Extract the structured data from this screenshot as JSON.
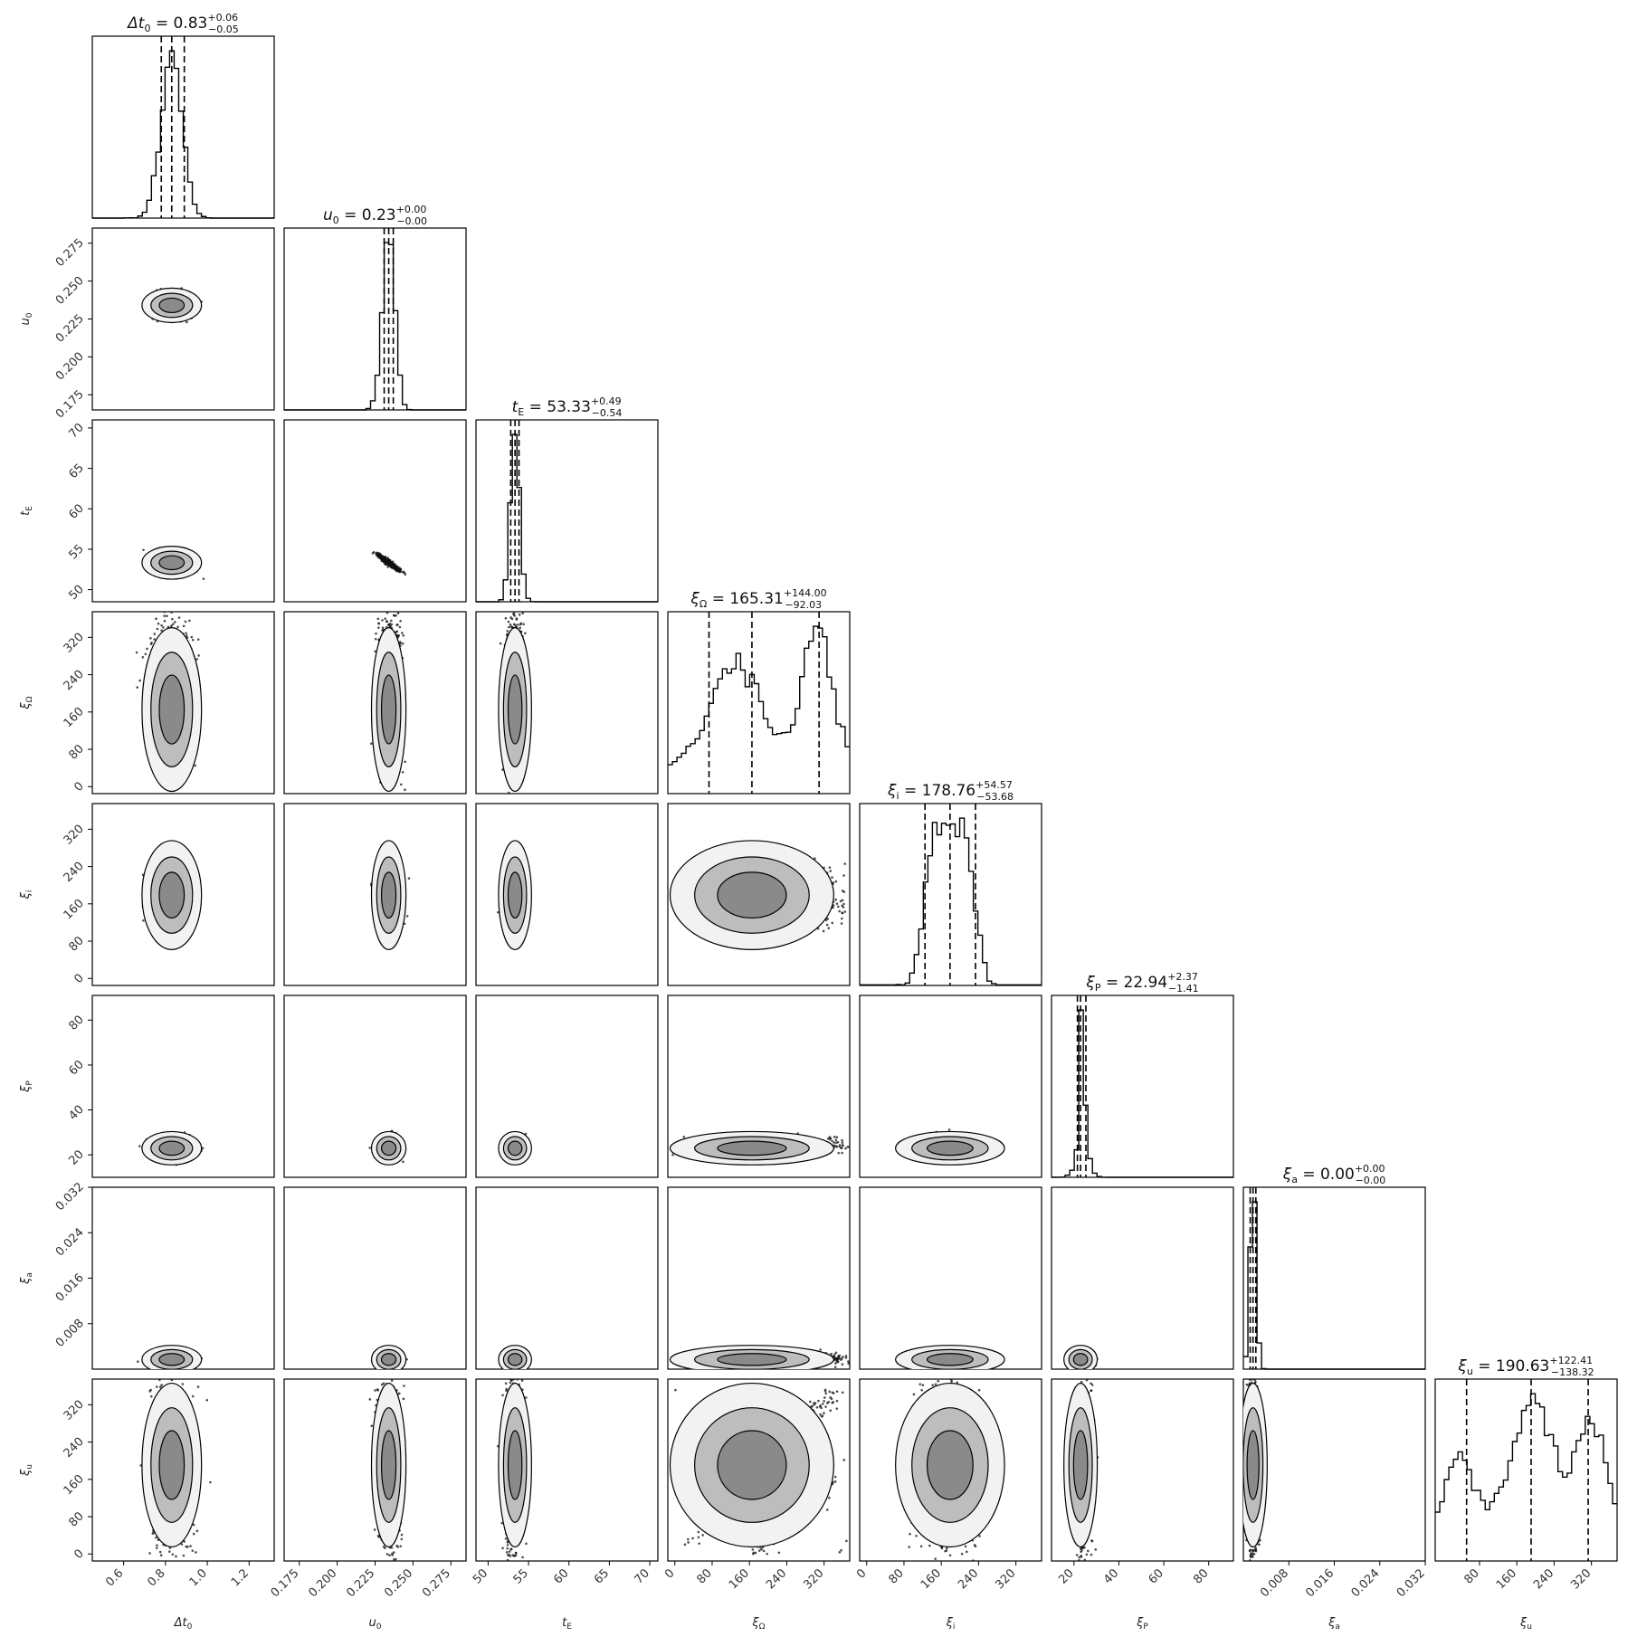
{
  "chart_data": {
    "type": "corner",
    "parameters": [
      {
        "key": "dt0",
        "label": "Δt0",
        "label_base": "Δt",
        "label_sub": "0",
        "title": "Δt0 = 0.83 +0.06 −0.05",
        "title_base": "Δt",
        "title_sub": "0",
        "median_text": " = 0.83",
        "plus": "+0.06",
        "minus": "−0.05",
        "range": [
          0.45,
          1.32
        ],
        "ticks": [
          0.6,
          0.8,
          1.0,
          1.2
        ],
        "tick_labels": [
          "0.6",
          "0.8",
          "1.0",
          "1.2"
        ],
        "median": 0.83,
        "q16": 0.78,
        "q84": 0.89,
        "hist_shape": "unimodal",
        "center": 0.83,
        "width": 0.05
      },
      {
        "key": "u0",
        "label": "u0",
        "label_base": "u",
        "label_sub": "0",
        "title": "u0 = 0.23 +0.00 −0.00",
        "title_base": "u",
        "title_sub": "0",
        "median_text": " = 0.23",
        "plus": "+0.00",
        "minus": "−0.00",
        "range": [
          0.165,
          0.285
        ],
        "ticks": [
          0.175,
          0.2,
          0.225,
          0.25,
          0.275
        ],
        "tick_labels": [
          "0.175",
          "0.200",
          "0.225",
          "0.250",
          "0.275"
        ],
        "median": 0.234,
        "q16": 0.231,
        "q84": 0.237,
        "hist_shape": "unimodal",
        "center": 0.234,
        "width": 0.004
      },
      {
        "key": "tE",
        "label": "tE",
        "label_base": "t",
        "label_sub": "E",
        "title": "tE = 53.33 +0.49 −0.54",
        "title_base": "t",
        "title_sub": "E",
        "median_text": " = 53.33",
        "plus": "+0.49",
        "minus": "−0.54",
        "range": [
          48.5,
          71
        ],
        "ticks": [
          50,
          55,
          60,
          65,
          70
        ],
        "tick_labels": [
          "50",
          "55",
          "60",
          "65",
          "70"
        ],
        "median": 53.33,
        "q16": 52.8,
        "q84": 53.82,
        "hist_shape": "unimodal",
        "center": 53.33,
        "width": 0.55
      },
      {
        "key": "xi_Omega",
        "label": "ξΩ",
        "label_base": "ξ",
        "label_sub": "Ω",
        "title": "ξΩ = 165.31 +144.00 −92.03",
        "title_base": "ξ",
        "title_sub": "Ω",
        "median_text": " = 165.31",
        "plus": "+144.00",
        "minus": "−92.03",
        "range": [
          -15,
          375
        ],
        "ticks": [
          0,
          80,
          160,
          240,
          320
        ],
        "tick_labels": [
          "0",
          "80",
          "160",
          "240",
          "320"
        ],
        "median": 165.31,
        "q16": 73.28,
        "q84": 309.31,
        "hist_shape": "bimodal_omega",
        "center": 165.31,
        "width": 100
      },
      {
        "key": "xi_i",
        "label": "ξi",
        "label_base": "ξ",
        "label_sub": "i",
        "title": "ξi = 178.76 +54.57 −53.68",
        "title_base": "ξ",
        "title_sub": "i",
        "median_text": " = 178.76",
        "plus": "+54.57",
        "minus": "−53.68",
        "range": [
          -15,
          375
        ],
        "ticks": [
          0,
          80,
          160,
          240,
          320
        ],
        "tick_labels": [
          "0",
          "80",
          "160",
          "240",
          "320"
        ],
        "median": 178.76,
        "q16": 125.08,
        "q84": 233.33,
        "hist_shape": "plateau",
        "center": 178.76,
        "width": 55
      },
      {
        "key": "xi_P",
        "label": "ξP",
        "label_base": "ξ",
        "label_sub": "P",
        "title": "ξP = 22.94 +2.37 −1.41",
        "title_base": "ξ",
        "title_sub": "P",
        "median_text": " = 22.94",
        "plus": "+2.37",
        "minus": "−1.41",
        "range": [
          10,
          91
        ],
        "ticks": [
          20,
          40,
          60,
          80
        ],
        "tick_labels": [
          "20",
          "40",
          "60",
          "80"
        ],
        "median": 22.94,
        "q16": 21.53,
        "q84": 25.31,
        "hist_shape": "skewed",
        "center": 22.94,
        "width": 1.8
      },
      {
        "key": "xi_a",
        "label": "ξa",
        "label_base": "ξ",
        "label_sub": "a",
        "title": "ξa = 0.00 +0.00 −0.00",
        "title_base": "ξ",
        "title_sub": "a",
        "median_text": " = 0.00",
        "plus": "+0.00",
        "minus": "−0.00",
        "range": [
          0.0,
          0.032
        ],
        "ticks": [
          0.008,
          0.016,
          0.024,
          0.032
        ],
        "tick_labels": [
          "0.008",
          "0.016",
          "0.024",
          "0.032"
        ],
        "median": 0.0017,
        "q16": 0.0012,
        "q84": 0.0022,
        "hist_shape": "narrow",
        "center": 0.0017,
        "width": 0.0005
      },
      {
        "key": "xi_u",
        "label": "ξu",
        "label_base": "ξ",
        "label_sub": "u",
        "title": "ξu = 190.63 +122.41 −138.32",
        "title_base": "ξ",
        "title_sub": "u",
        "median_text": " = 190.63",
        "plus": "+122.41",
        "minus": "−138.32",
        "range": [
          -15,
          375
        ],
        "ticks": [
          80,
          160,
          240,
          320
        ],
        "tick_labels": [
          "80",
          "160",
          "240",
          "320"
        ],
        "median": 190.63,
        "q16": 52.31,
        "q84": 313.04,
        "hist_shape": "trimodal",
        "center": 190.63,
        "width": 110
      }
    ],
    "ylabel_tick_labels": {
      "u0": [
        "0.175",
        "0.200",
        "0.225",
        "0.250",
        "0.275"
      ],
      "tE": [
        "50",
        "55",
        "60",
        "65",
        "70"
      ],
      "xi_Omega": [
        "0",
        "80",
        "160",
        "240",
        "320"
      ],
      "xi_i": [
        "0",
        "80",
        "160",
        "240",
        "320"
      ],
      "xi_P": [
        "20",
        "40",
        "60",
        "80"
      ],
      "xi_a": [
        "0.008",
        "0.016",
        "0.024",
        "0.032"
      ],
      "xi_u": [
        "0",
        "80",
        "160",
        "240",
        "320"
      ]
    },
    "quantile_lines": "16th, 50th, 84th percentiles (dashed)",
    "colors": {
      "frame": "#000000",
      "hist": "#000000",
      "density_dark": "#1a1a1a",
      "density_light": "#cfcfcf",
      "background": "#ffffff"
    }
  }
}
